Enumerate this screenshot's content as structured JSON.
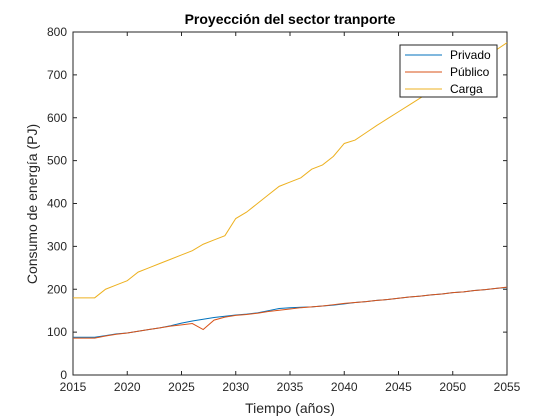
{
  "chart_data": {
    "type": "line",
    "title": "Proyección del sector tranporte",
    "xlabel": "Tiempo (años)",
    "ylabel": "Consumo de energía (PJ)",
    "xlim": [
      2015,
      2055
    ],
    "ylim": [
      0,
      800
    ],
    "xticks": [
      2015,
      2020,
      2025,
      2030,
      2035,
      2040,
      2045,
      2050,
      2055
    ],
    "yticks": [
      0,
      100,
      200,
      300,
      400,
      500,
      600,
      700,
      800
    ],
    "grid": false,
    "legend_position": "top-right",
    "series": [
      {
        "name": "Privado",
        "color": "#0072BD",
        "x": [
          2015,
          2016,
          2017,
          2018,
          2019,
          2020,
          2021,
          2022,
          2023,
          2024,
          2025,
          2026,
          2027,
          2028,
          2029,
          2030,
          2031,
          2032,
          2033,
          2034,
          2035,
          2036,
          2037,
          2038,
          2039,
          2040,
          2041,
          2042,
          2043,
          2044,
          2045,
          2046,
          2047,
          2048,
          2049,
          2050,
          2051,
          2052,
          2053,
          2054,
          2055
        ],
        "y": [
          88,
          88,
          88,
          92,
          96,
          98,
          102,
          106,
          110,
          115,
          121,
          126,
          130,
          134,
          137,
          140,
          142,
          145,
          150,
          155,
          157,
          158,
          159,
          161,
          163,
          166,
          169,
          171,
          174,
          176,
          179,
          182,
          184,
          187,
          189,
          192,
          194,
          197,
          199,
          202,
          204
        ]
      },
      {
        "name": "Público",
        "color": "#D95319",
        "x": [
          2015,
          2016,
          2017,
          2018,
          2019,
          2020,
          2021,
          2022,
          2023,
          2024,
          2025,
          2026,
          2027,
          2028,
          2029,
          2030,
          2031,
          2032,
          2033,
          2034,
          2035,
          2036,
          2037,
          2038,
          2039,
          2040,
          2041,
          2042,
          2043,
          2044,
          2045,
          2046,
          2047,
          2048,
          2049,
          2050,
          2051,
          2052,
          2053,
          2054,
          2055
        ],
        "y": [
          86,
          86,
          86,
          91,
          95,
          98,
          102,
          106,
          110,
          114,
          117,
          120,
          106,
          128,
          135,
          139,
          141,
          144,
          148,
          151,
          154,
          157,
          159,
          161,
          164,
          167,
          169,
          171,
          174,
          176,
          179,
          182,
          184,
          187,
          189,
          192,
          194,
          197,
          199,
          202,
          205
        ]
      },
      {
        "name": "Carga",
        "color": "#EDB120",
        "x": [
          2015,
          2016,
          2017,
          2018,
          2019,
          2020,
          2021,
          2022,
          2023,
          2024,
          2025,
          2026,
          2027,
          2028,
          2029,
          2030,
          2031,
          2032,
          2033,
          2034,
          2035,
          2036,
          2037,
          2038,
          2039,
          2040,
          2041,
          2042,
          2043,
          2044,
          2045,
          2046,
          2047,
          2048,
          2049,
          2050,
          2051,
          2052,
          2053,
          2054,
          2055
        ],
        "y": [
          180,
          180,
          180,
          200,
          210,
          220,
          240,
          250,
          260,
          270,
          280,
          290,
          305,
          315,
          325,
          365,
          380,
          400,
          420,
          440,
          450,
          460,
          480,
          490,
          510,
          540,
          548,
          565,
          582,
          598,
          614,
          630,
          646,
          662,
          678,
          694,
          710,
          726,
          742,
          758,
          775
        ]
      }
    ]
  }
}
